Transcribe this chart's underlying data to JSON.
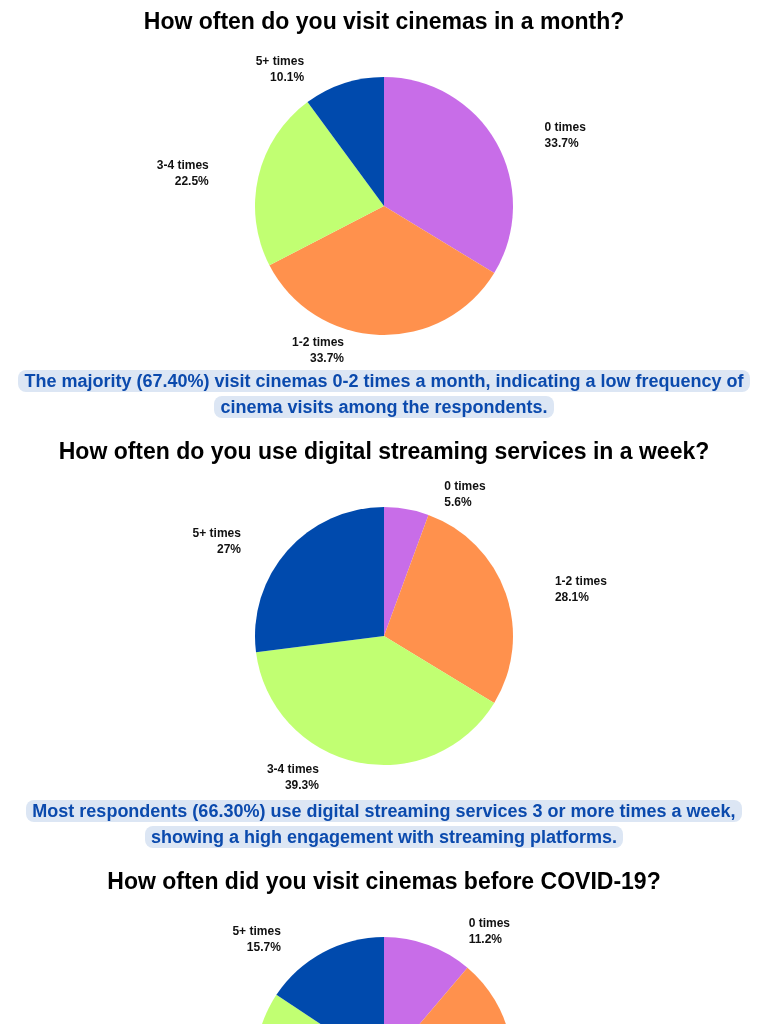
{
  "chart_data": [
    {
      "type": "pie",
      "title": "How often do you visit cinemas in a month?",
      "categories": [
        "0 times",
        "1-2 times",
        "3-4 times",
        "5+ times"
      ],
      "values": [
        33.7,
        33.7,
        22.5,
        10.1
      ],
      "value_labels": [
        "33.7%",
        "33.7%",
        "22.5%",
        "10.1%"
      ],
      "colors": [
        "#c86de8",
        "#ff914d",
        "#c1ff72",
        "#004aad"
      ],
      "legend": false,
      "annotations": [
        "The majority (67.40%) visit cinemas 0-2 times a month, indicating a low frequency of cinema visits among the respondents."
      ]
    },
    {
      "type": "pie",
      "title": "How often do you use digital streaming services in a week?",
      "categories": [
        "0 times",
        "1-2 times",
        "3-4 times",
        "5+ times"
      ],
      "values": [
        5.6,
        28.1,
        39.3,
        27
      ],
      "value_labels": [
        "5.6%",
        "28.1%",
        "39.3%",
        "27%"
      ],
      "colors": [
        "#c86de8",
        "#ff914d",
        "#c1ff72",
        "#004aad"
      ],
      "legend": false,
      "annotations": [
        "Most respondents (66.30%) use digital streaming services 3 or more times a week, showing a high engagement with streaming platforms."
      ]
    },
    {
      "type": "pie",
      "title": "How often did you visit cinemas before COVID-19?",
      "categories": [
        "0 times",
        null,
        null,
        "5+ times"
      ],
      "values": [
        11.2,
        42,
        31.1,
        15.7
      ],
      "value_labels": [
        "11.2%",
        null,
        null,
        "15.7%"
      ],
      "colors": [
        "#c86de8",
        "#ff914d",
        "#c1ff72",
        "#004aad"
      ],
      "legend": false
    }
  ]
}
